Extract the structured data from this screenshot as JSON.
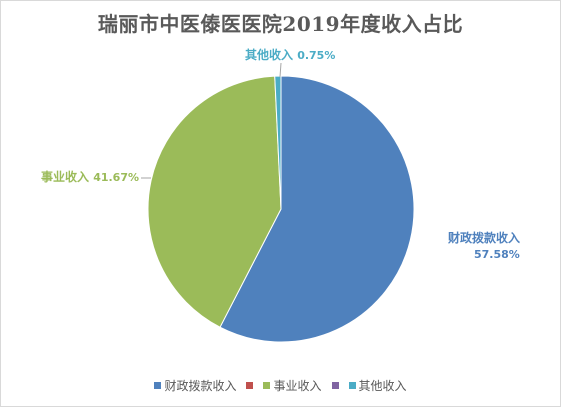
{
  "chart_data": {
    "type": "pie",
    "title": "瑞丽市中医傣医医院2019年度收入占比",
    "categories": [
      "财政拨款收入",
      "事业收入",
      "其他收入"
    ],
    "values": [
      57.58,
      41.67,
      0.75
    ],
    "value_labels": [
      "57.58%",
      "41.67%",
      "0.75%"
    ],
    "slice_colors": [
      "#4f81bd",
      "#9bbb59",
      "#4bacc6"
    ],
    "legend": {
      "position": "bottom",
      "entries": [
        {
          "label": "财政拨款收入",
          "color": "#4f81bd"
        },
        {
          "label": "",
          "color": "#c0504d"
        },
        {
          "label": "事业收入",
          "color": "#9bbb59"
        },
        {
          "label": "",
          "color": "#8064a2"
        },
        {
          "label": "其他收入",
          "color": "#4bacc6"
        }
      ]
    }
  }
}
